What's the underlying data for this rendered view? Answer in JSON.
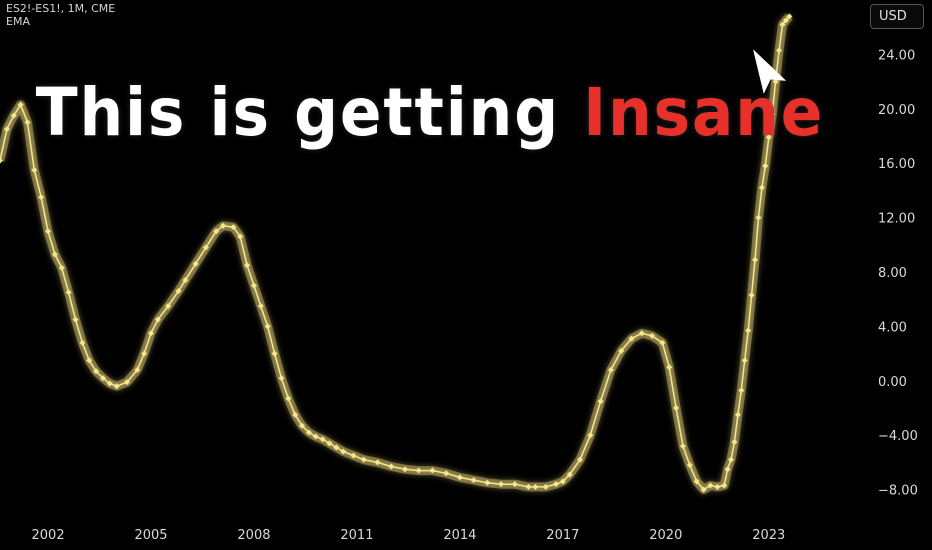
{
  "symbol": {
    "title": "ES2!-ES1!, 1M, CME",
    "indicator": "EMA"
  },
  "currency": "USD",
  "headline": {
    "part1": "This is getting",
    "part2": "Insane"
  },
  "colors": {
    "background": "#000000",
    "line": "#f5e88a",
    "glow": "#ffe98a",
    "accent": "#e8302a",
    "text": "#ffffff"
  },
  "icons": {
    "annotation_arrow": "arrow-pointer-icon"
  },
  "chart_data": {
    "type": "line",
    "title": "",
    "xlabel": "",
    "ylabel": "",
    "x_tick_labels": [
      "2002",
      "2005",
      "2008",
      "2011",
      "2014",
      "2017",
      "2020",
      "2023"
    ],
    "y_tick_labels": [
      "24.00",
      "20.00",
      "16.00",
      "12.00",
      "8.00",
      "4.00",
      "0.00",
      "−4.00",
      "−8.00"
    ],
    "y_ticks": [
      24,
      20,
      16,
      12,
      8,
      4,
      0,
      -4,
      -8
    ],
    "xlim": [
      2000.6,
      2025.6
    ],
    "ylim": [
      -9.5,
      28
    ],
    "grid": false,
    "marker": "diamond",
    "series": [
      {
        "x": [
          2000.6,
          2000.8,
          2001.0,
          2001.2,
          2001.4,
          2001.6,
          2001.8,
          2002.0,
          2002.2,
          2002.4,
          2002.6,
          2002.8,
          2003.0,
          2003.2,
          2003.4,
          2003.6,
          2003.8,
          2004.0,
          2004.3,
          2004.6,
          2004.8,
          2005.0,
          2005.2,
          2005.5,
          2005.8,
          2006.0,
          2006.3,
          2006.6,
          2006.9,
          2007.1,
          2007.4,
          2007.6,
          2007.8,
          2008.0,
          2008.2,
          2008.4,
          2008.6,
          2008.8,
          2009.0,
          2009.2,
          2009.4,
          2009.6,
          2009.8,
          2010.0,
          2010.2,
          2010.4,
          2010.6,
          2010.9,
          2011.2,
          2011.6,
          2012.0,
          2012.4,
          2012.8,
          2013.2,
          2013.6,
          2014.0,
          2014.4,
          2014.8,
          2015.2,
          2015.6,
          2016.0,
          2016.2,
          2016.5,
          2016.8,
          2017.0,
          2017.2,
          2017.5,
          2017.8,
          2018.1,
          2018.4,
          2018.7,
          2019.0,
          2019.3,
          2019.6,
          2019.9,
          2020.1,
          2020.3,
          2020.5,
          2020.7,
          2020.9,
          2021.1,
          2021.3,
          2021.5,
          2021.7,
          2021.8,
          2021.9,
          2022.0,
          2022.1,
          2022.2,
          2022.3,
          2022.4,
          2022.5,
          2022.6,
          2022.7,
          2022.8,
          2022.9,
          2023.0,
          2023.1,
          2023.2,
          2023.3,
          2023.4,
          2023.5,
          2023.6
        ],
        "y": [
          16.2,
          18.5,
          19.5,
          20.3,
          19.0,
          15.5,
          13.5,
          11.0,
          9.3,
          8.3,
          6.5,
          4.5,
          2.8,
          1.5,
          0.7,
          0.2,
          -0.2,
          -0.4,
          -0.1,
          0.8,
          2.0,
          3.5,
          4.5,
          5.5,
          6.6,
          7.4,
          8.6,
          9.8,
          11.0,
          11.4,
          11.3,
          10.6,
          8.5,
          7.0,
          5.5,
          4.0,
          2.0,
          0.2,
          -1.3,
          -2.5,
          -3.3,
          -3.8,
          -4.1,
          -4.3,
          -4.6,
          -4.9,
          -5.2,
          -5.5,
          -5.8,
          -6.0,
          -6.3,
          -6.5,
          -6.6,
          -6.6,
          -6.8,
          -7.1,
          -7.3,
          -7.5,
          -7.6,
          -7.6,
          -7.8,
          -7.8,
          -7.8,
          -7.6,
          -7.4,
          -6.9,
          -5.8,
          -4.0,
          -1.5,
          0.8,
          2.2,
          3.1,
          3.5,
          3.3,
          2.8,
          1.0,
          -2.0,
          -4.8,
          -6.2,
          -7.4,
          -8.0,
          -7.7,
          -7.8,
          -7.7,
          -6.5,
          -5.8,
          -4.5,
          -2.5,
          -0.7,
          1.5,
          3.7,
          6.3,
          8.9,
          12.0,
          14.2,
          15.8,
          17.9,
          19.6,
          22.0,
          24.3,
          26.2,
          26.5,
          26.8
        ]
      }
    ]
  }
}
